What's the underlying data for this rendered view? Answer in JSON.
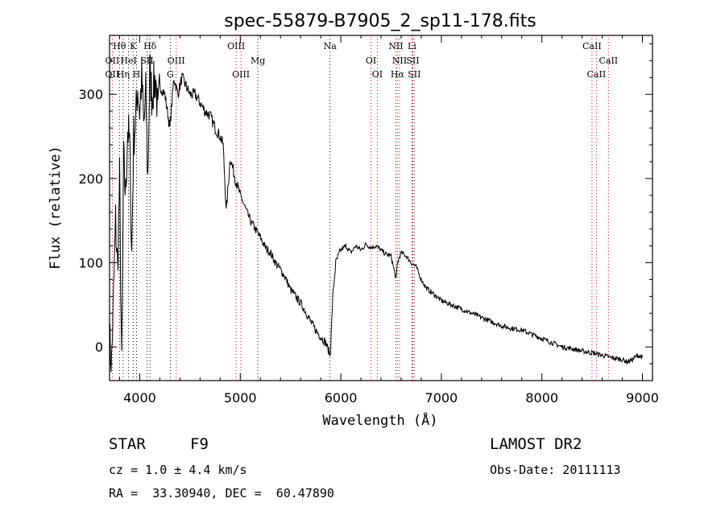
{
  "chart_data": {
    "type": "line",
    "title": "spec-55879-B7905_2_sp11-178.fits",
    "xlabel": "Wavelength (Å)",
    "ylabel": "Flux (relative)",
    "xlim": [
      3700,
      9100
    ],
    "ylim": [
      -40,
      370
    ],
    "xticks": [
      "4000",
      "5000",
      "6000",
      "7000",
      "8000",
      "9000"
    ],
    "yticks": [
      "0",
      "100",
      "200",
      "300"
    ],
    "grid": false,
    "series": [
      {
        "x": [
          3700,
          3720,
          3740,
          3760,
          3780,
          3800,
          3820,
          3840,
          3860,
          3880,
          3900,
          3920,
          3940,
          3960,
          3980,
          4000,
          4020,
          4040,
          4060,
          4080,
          4100,
          4120,
          4140,
          4160,
          4180,
          4200,
          4250,
          4300,
          4340,
          4380,
          4420,
          4460,
          4500,
          4550,
          4600,
          4650,
          4700,
          4750,
          4800,
          4830,
          4861,
          4900,
          4950,
          5000,
          5050,
          5100,
          5150,
          5200,
          5250,
          5300,
          5350,
          5400,
          5450,
          5500,
          5550,
          5600,
          5650,
          5700,
          5750,
          5800,
          5850,
          5880,
          5893,
          5900,
          5920,
          5950,
          6000,
          6050,
          6100,
          6150,
          6200,
          6250,
          6300,
          6350,
          6400,
          6450,
          6500,
          6550,
          6563,
          6580,
          6600,
          6650,
          6700,
          6750,
          6800,
          6850,
          6900,
          6950,
          7000,
          7100,
          7200,
          7300,
          7400,
          7500,
          7600,
          7700,
          7800,
          7900,
          8000,
          8100,
          8200,
          8300,
          8400,
          8500,
          8600,
          8700,
          8800,
          8850,
          8900,
          8950,
          9000
        ],
        "values": [
          10,
          -20,
          60,
          150,
          90,
          200,
          -30,
          220,
          180,
          260,
          240,
          110,
          250,
          270,
          310,
          280,
          320,
          260,
          300,
          200,
          330,
          300,
          310,
          320,
          270,
          310,
          300,
          260,
          320,
          300,
          320,
          310,
          300,
          300,
          290,
          280,
          275,
          260,
          250,
          240,
          160,
          225,
          200,
          180,
          165,
          150,
          140,
          130,
          118,
          112,
          100,
          92,
          82,
          68,
          60,
          52,
          42,
          30,
          20,
          12,
          5,
          -5,
          -10,
          2,
          60,
          100,
          115,
          120,
          112,
          120,
          115,
          122,
          118,
          120,
          115,
          110,
          108,
          80,
          100,
          105,
          112,
          108,
          100,
          95,
          80,
          70,
          65,
          60,
          55,
          50,
          45,
          40,
          35,
          30,
          25,
          22,
          20,
          15,
          10,
          5,
          0,
          -2,
          -5,
          -7,
          -10,
          -13,
          -15,
          -18,
          -15,
          -10,
          -12
        ]
      }
    ],
    "line_labels": [
      {
        "text": "Hθ",
        "x": 3798,
        "row": 0
      },
      {
        "text": "K",
        "x": 3934,
        "row": 0
      },
      {
        "text": "Hδ",
        "x": 4102,
        "row": 0
      },
      {
        "text": "OII",
        "x": 3727,
        "row": 1
      },
      {
        "text": "HeI",
        "x": 3889,
        "row": 1
      },
      {
        "text": "SII",
        "x": 4072,
        "row": 1
      },
      {
        "text": "OIII",
        "x": 4363,
        "row": 1
      },
      {
        "text": "OII",
        "x": 3727,
        "row": 2
      },
      {
        "text": "Hη",
        "x": 3835,
        "row": 2
      },
      {
        "text": "H",
        "x": 3968,
        "row": 2
      },
      {
        "text": "G",
        "x": 4304,
        "row": 2
      },
      {
        "text": "OIII",
        "x": 4959,
        "row": 0
      },
      {
        "text": "Mg",
        "x": 5175,
        "row": 1
      },
      {
        "text": "OIII",
        "x": 5007,
        "row": 2
      },
      {
        "text": "Na",
        "x": 5893,
        "row": 0
      },
      {
        "text": "OI",
        "x": 6300,
        "row": 1
      },
      {
        "text": "OI",
        "x": 6363,
        "row": 2
      },
      {
        "text": "NII",
        "x": 6548,
        "row": 0
      },
      {
        "text": "Li",
        "x": 6708,
        "row": 0
      },
      {
        "text": "NII",
        "x": 6584,
        "row": 1
      },
      {
        "text": "SII",
        "x": 6716,
        "row": 1
      },
      {
        "text": "Hα",
        "x": 6563,
        "row": 2
      },
      {
        "text": "SII",
        "x": 6731,
        "row": 2
      },
      {
        "text": "CaII",
        "x": 8498,
        "row": 0
      },
      {
        "text": "CaII",
        "x": 8662,
        "row": 1
      },
      {
        "text": "CaII",
        "x": 8542,
        "row": 2
      }
    ],
    "line_positions": [
      3727,
      3798,
      3835,
      3889,
      3934,
      3968,
      4072,
      4102,
      4304,
      4363,
      4959,
      5007,
      5175,
      5893,
      6300,
      6363,
      6548,
      6563,
      6584,
      6708,
      6716,
      6731,
      8498,
      8542,
      8662
    ],
    "line_colors": {
      "emission": "#cc0000",
      "absorption": "#000000"
    }
  },
  "info": {
    "class_label": "STAR",
    "subclass": "F9",
    "survey": "LAMOST DR2",
    "cz": "cz = 1.0 ± 4.4 km/s",
    "obs_date": "Obs-Date: 20111113",
    "coords": "RA =  33.30940, DEC =  60.47890"
  }
}
